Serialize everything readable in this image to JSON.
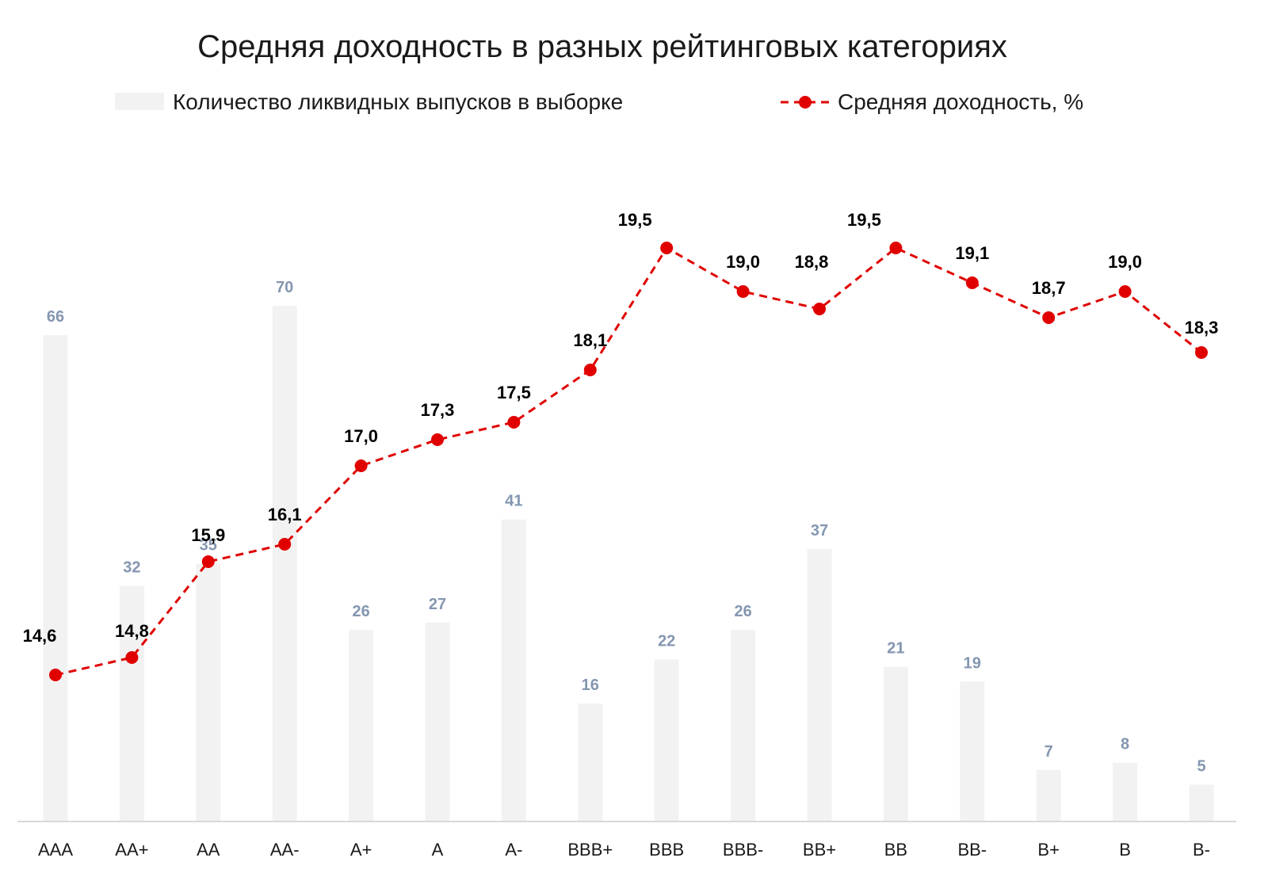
{
  "chart_data": {
    "type": "bar+line",
    "title": "Средняя доходность в разных рейтинговых категориях",
    "categories": [
      "AAA",
      "AA+",
      "AA",
      "AA-",
      "A+",
      "A",
      "A-",
      "BBB+",
      "BBB",
      "BBB-",
      "BB+",
      "BB",
      "BB-",
      "B+",
      "B",
      "B-"
    ],
    "series": [
      {
        "name": "Количество ликвидных выпусков в выборке",
        "type": "bar",
        "values": [
          66,
          32,
          35,
          70,
          26,
          27,
          41,
          16,
          22,
          26,
          37,
          21,
          19,
          7,
          8,
          5
        ],
        "value_labels": [
          "66",
          "32",
          "35",
          "70",
          "26",
          "27",
          "41",
          "16",
          "22",
          "26",
          "37",
          "21",
          "19",
          "7",
          "8",
          "5"
        ],
        "color": "#f2f2f2",
        "label_color": "#8496b0"
      },
      {
        "name": "Средняя доходность, %",
        "type": "line",
        "style": "dashed",
        "marker": "circle",
        "values": [
          14.6,
          14.8,
          15.9,
          16.1,
          17.0,
          17.3,
          17.5,
          18.1,
          19.5,
          19.0,
          18.8,
          19.5,
          19.1,
          18.7,
          19.0,
          18.3
        ],
        "value_labels": [
          "14,6",
          "14,8",
          "15,9",
          "16,1",
          "17,0",
          "17,3",
          "17,5",
          "18,1",
          "19,5",
          "19,0",
          "18,8",
          "19,5",
          "19,1",
          "18,7",
          "19,0",
          "18,3"
        ],
        "color": "#e00000",
        "label_color": "#000000"
      }
    ],
    "bar_axis_range": [
      0,
      70
    ],
    "line_axis_range": [
      14.6,
      19.5
    ],
    "grid": false,
    "legend_position": "top",
    "axis_line_color": "#d9d9d9"
  }
}
